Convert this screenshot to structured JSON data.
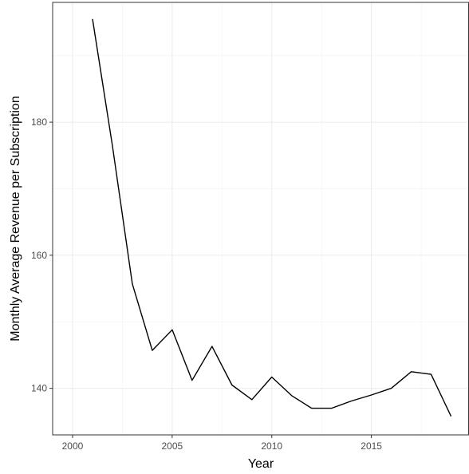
{
  "chart_data": {
    "type": "line",
    "title": "",
    "xlabel": "Year",
    "ylabel": "Monthly Average Revenue per Subscription",
    "xlim": [
      1999.0,
      2019.9
    ],
    "ylim": [
      133.0,
      198.0
    ],
    "x_ticks": [
      2000,
      2005,
      2010,
      2015
    ],
    "x_tick_labels": [
      "2000",
      "2005",
      "2010",
      "2015"
    ],
    "x_minor_ticks": [
      2002.5,
      2007.5,
      2012.5,
      2017.5
    ],
    "y_ticks": [
      140,
      160,
      180
    ],
    "y_tick_labels": [
      "140",
      "160",
      "180"
    ],
    "y_minor_ticks": [
      150,
      170,
      190
    ],
    "grid": true,
    "legend": "none",
    "series": [
      {
        "x": [
          2001,
          2002,
          2003,
          2004,
          2005,
          2006,
          2007,
          2008,
          2009,
          2010,
          2011,
          2012,
          2013,
          2014,
          2015,
          2016,
          2017,
          2018,
          2019
        ],
        "values": [
          195.5,
          176.5,
          155.7,
          145.7,
          148.8,
          141.2,
          146.3,
          140.5,
          138.3,
          141.7,
          138.9,
          137.0,
          137.0,
          138.1,
          139.0,
          140.0,
          142.5,
          142.1,
          135.8
        ],
        "color": "#000000"
      }
    ]
  }
}
